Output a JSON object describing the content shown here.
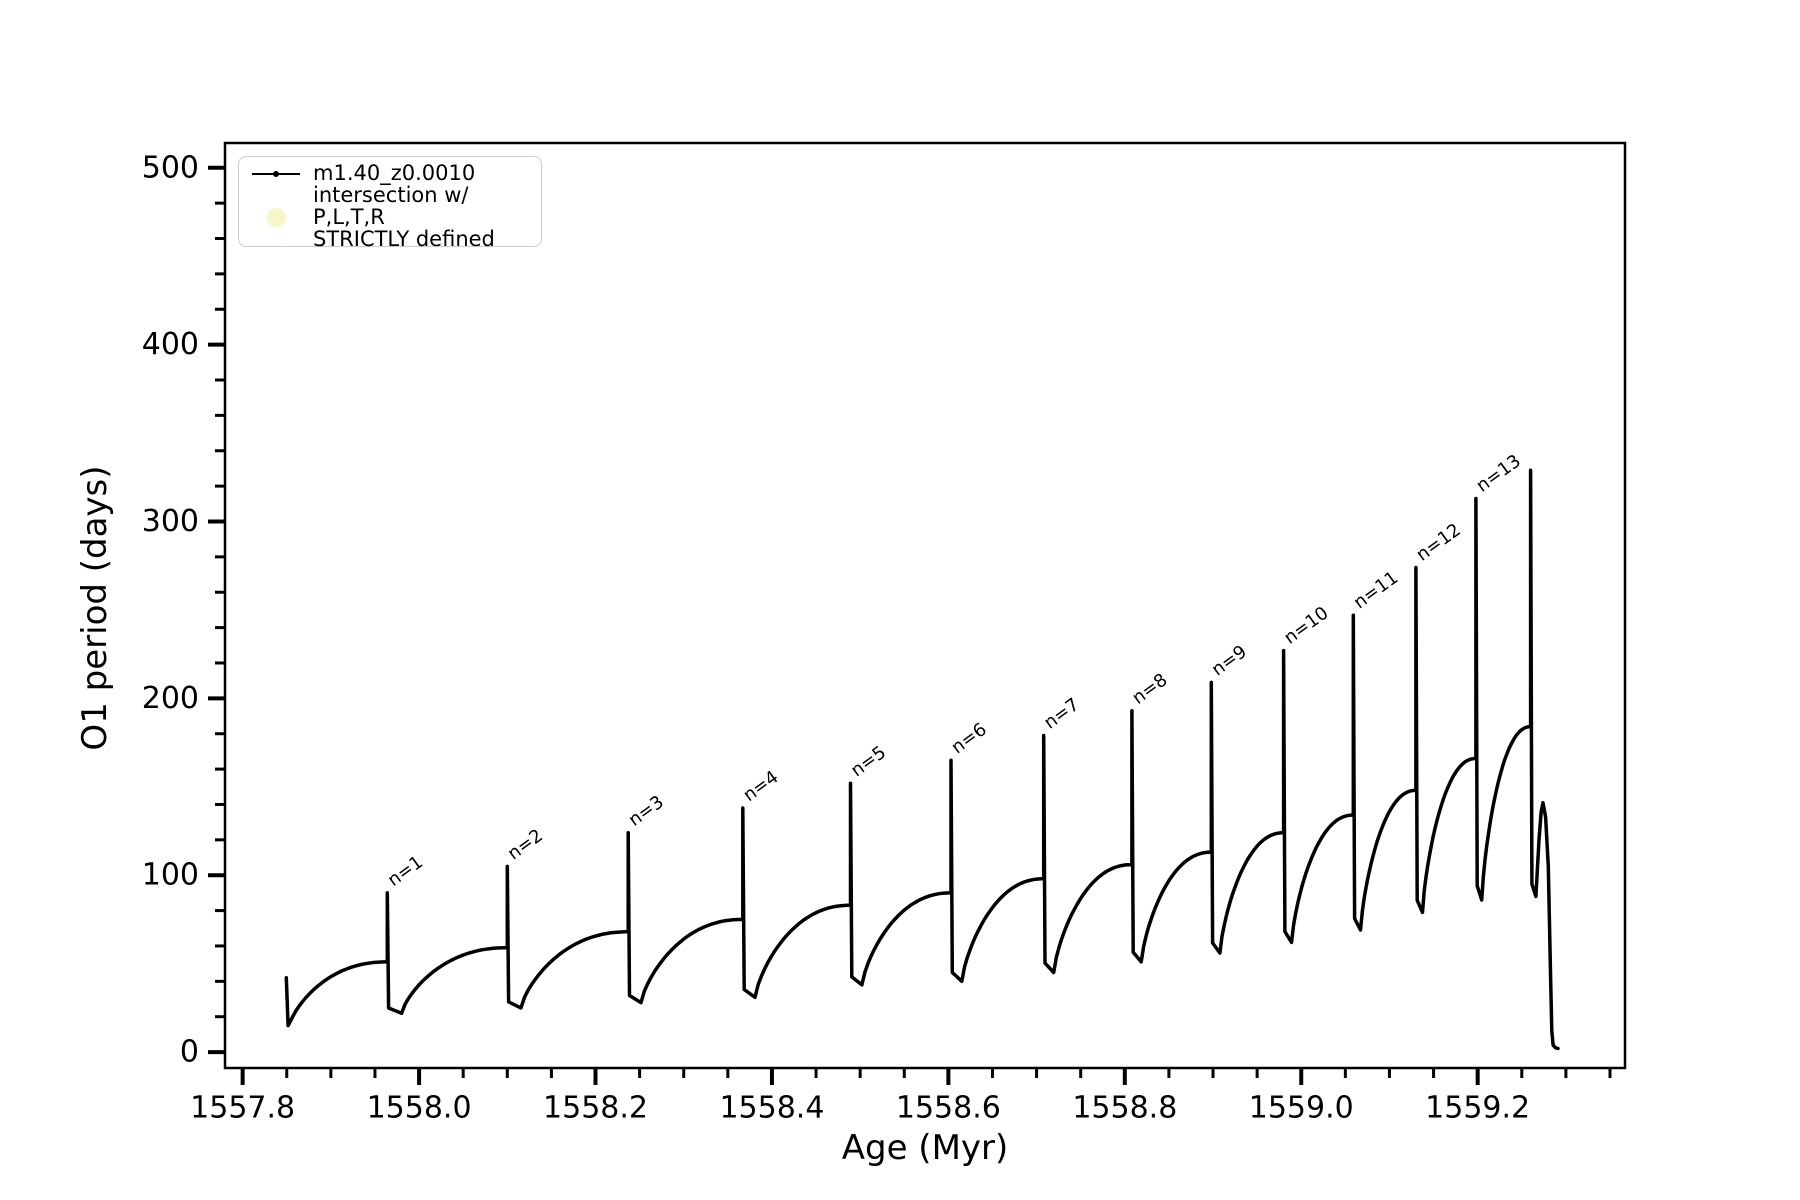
{
  "figure": {
    "background": "#ffffff",
    "curve_color": "#000000",
    "axes": {
      "xlabel": "Age (Myr)",
      "ylabel": "O1 period (days)",
      "xlim": [
        1557.78,
        1559.367
      ],
      "ylim": [
        -9.0,
        514.0
      ],
      "xticks": [
        1557.8,
        1558.0,
        1558.2,
        1558.4,
        1558.6,
        1558.8,
        1559.0,
        1559.2
      ],
      "xtick_labels": [
        "1557.8",
        "1558.0",
        "1558.2",
        "1558.4",
        "1558.6",
        "1558.8",
        "1559.0",
        "1559.2"
      ],
      "x_minor_step": 0.05,
      "yticks": [
        0,
        100,
        200,
        300,
        400,
        500
      ],
      "ytick_labels": [
        "0",
        "100",
        "200",
        "300",
        "400",
        "500"
      ],
      "y_minor_step": 20,
      "grid": "off",
      "ticks_on": "left-bottom"
    },
    "legend": {
      "position": "upper-left",
      "entries": [
        {
          "type": "line-with-dot-marker",
          "color": "#000000",
          "label": "m1.40_z0.0010"
        },
        {
          "type": "filled-circle",
          "color": "#f8f6c6",
          "label": "intersection w/ P,L,T,R\nSTRICTLY defined"
        }
      ]
    }
  },
  "chart_data": {
    "type": "line",
    "series_name": "m1.40_z0.0010",
    "title": "",
    "xlabel": "Age (Myr)",
    "ylabel": "O1 period (days)",
    "xlim": [
      1557.78,
      1559.367
    ],
    "ylim": [
      -9.0,
      514.0
    ],
    "legend_position": "upper left",
    "grid": false,
    "description": "Orbital/pulsation period vs stellar age; sawtooth cycles: slow concave rise to a plateau, sharp narrow spike (thermal pulse n=1..13), rapid drop to a minimum, then next rise. Track ends with unlabeled tallest spike and a plunge to ~0.",
    "intro": {
      "age_start": 1557.8495,
      "val_start": 42,
      "age_bottom": 1557.8515,
      "val_bottom": 15
    },
    "pulses": [
      {
        "label": "n=1",
        "age": 1557.964,
        "plateau": 51,
        "peak": 90,
        "min_after": 22
      },
      {
        "label": "n=2",
        "age": 1558.1,
        "plateau": 59,
        "peak": 105,
        "min_after": 25
      },
      {
        "label": "n=3",
        "age": 1558.237,
        "plateau": 68,
        "peak": 124,
        "min_after": 28
      },
      {
        "label": "n=4",
        "age": 1558.367,
        "plateau": 75,
        "peak": 138,
        "min_after": 31
      },
      {
        "label": "n=5",
        "age": 1558.489,
        "plateau": 83,
        "peak": 152,
        "min_after": 38
      },
      {
        "label": "n=6",
        "age": 1558.603,
        "plateau": 90,
        "peak": 165,
        "min_after": 40
      },
      {
        "label": "n=7",
        "age": 1558.708,
        "plateau": 98,
        "peak": 179,
        "min_after": 45
      },
      {
        "label": "n=8",
        "age": 1558.808,
        "plateau": 106,
        "peak": 193,
        "min_after": 51
      },
      {
        "label": "n=9",
        "age": 1558.898,
        "plateau": 113,
        "peak": 209,
        "min_after": 56
      },
      {
        "label": "n=10",
        "age": 1558.98,
        "plateau": 124,
        "peak": 227,
        "min_after": 62
      },
      {
        "label": "n=11",
        "age": 1559.059,
        "plateau": 134,
        "peak": 247,
        "min_after": 69
      },
      {
        "label": "n=12",
        "age": 1559.13,
        "plateau": 148,
        "peak": 274,
        "min_after": 79
      },
      {
        "label": "n=13",
        "age": 1559.198,
        "plateau": 166,
        "peak": 313,
        "min_after": 86
      },
      {
        "label": "",
        "age": 1559.26,
        "plateau": 184,
        "peak": 329,
        "min_after": 88
      }
    ],
    "finale_points": [
      [
        1559.2615,
        95
      ],
      [
        1559.266,
        88
      ],
      [
        1559.2695,
        120
      ],
      [
        1559.272,
        136
      ],
      [
        1559.274,
        141
      ],
      [
        1559.277,
        133
      ],
      [
        1559.28,
        105
      ],
      [
        1559.2825,
        45
      ],
      [
        1559.284,
        12
      ],
      [
        1559.2855,
        4
      ],
      [
        1559.288,
        2.5
      ],
      [
        1559.291,
        2
      ]
    ]
  }
}
